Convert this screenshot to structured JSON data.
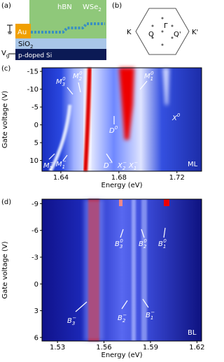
{
  "panel_a": {
    "label": "(a)",
    "hbn": "hBN",
    "wse2": {
      "base": "WSe",
      "sub": "2"
    },
    "au": "Au",
    "sio2": {
      "base": "SiO",
      "sub": "2"
    },
    "si": "p-doped Si",
    "vg": {
      "base": "V",
      "sub": "g"
    }
  },
  "panel_b": {
    "label": "(b)",
    "k": "K",
    "kp": "K'",
    "gamma": "Γ",
    "q": "Q",
    "qp": "Q'"
  },
  "panel_c": {
    "label": "(c)",
    "xlabel": "Energy (eV)",
    "ylabel": "Gate voltage (V)",
    "xlim": [
      1.627,
      1.737
    ],
    "ylim": [
      -16,
      13
    ],
    "xticks": [
      1.64,
      1.68,
      1.72
    ],
    "yticks": [
      -15,
      -10,
      -5,
      0,
      5,
      10
    ],
    "tag": "ML",
    "annotations": [
      {
        "base": "M",
        "sub": "3",
        "sup": "0"
      },
      {
        "base": "M",
        "sub": "2",
        "sup": "0"
      },
      {
        "base": "M",
        "sub": "1",
        "sup": "0"
      },
      {
        "base": "D",
        "sup": "0"
      },
      {
        "base": "X",
        "sup": "0"
      },
      {
        "base": "D",
        "sup": "−"
      },
      {
        "base": "X",
        "sub": "2",
        "sup": "−"
      },
      {
        "base": "X",
        "sub": "1",
        "sup": "−"
      },
      {
        "base": "M",
        "sub": "2",
        "sup": "−"
      },
      {
        "base": "M",
        "sub": "1",
        "sup": "−"
      }
    ]
  },
  "panel_d": {
    "label": "(d)",
    "xlabel": "Energy (eV)",
    "ylabel": "Gate voltage (V)",
    "xlim": [
      1.52,
      1.623
    ],
    "ylim": [
      -9.5,
      6.4
    ],
    "xticks": [
      1.53,
      1.56,
      1.59,
      1.62
    ],
    "yticks": [
      -9,
      -6,
      -3,
      0,
      3,
      6
    ],
    "tag": "BL",
    "annotations": [
      {
        "base": "B",
        "sub": "3",
        "sup": "0"
      },
      {
        "base": "B",
        "sub": "2",
        "sup": "0"
      },
      {
        "base": "B",
        "sub": "1",
        "sup": "0"
      },
      {
        "base": "B",
        "sub": "3",
        "sup": "−"
      },
      {
        "base": "B",
        "sub": "2",
        "sup": "−"
      },
      {
        "base": "B",
        "sub": "1",
        "sup": "−"
      }
    ]
  }
}
